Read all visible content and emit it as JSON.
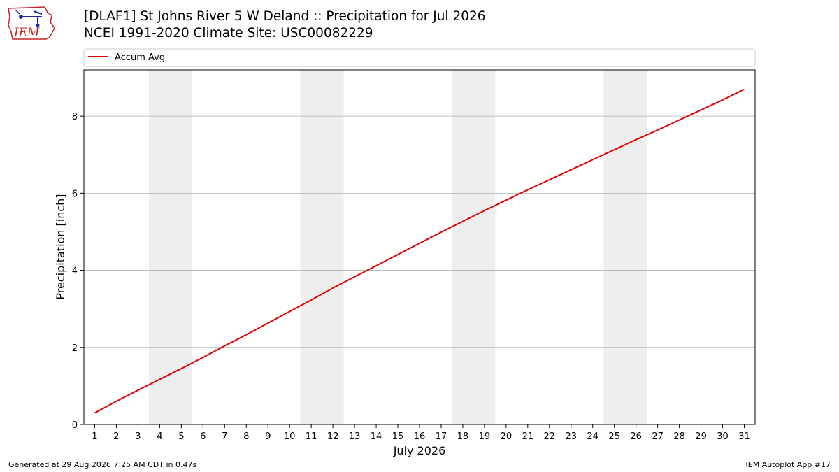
{
  "header": {
    "logo_text": "IEM",
    "title_line1": "[DLAF1] St Johns River 5 W Deland :: Precipitation for Jul 2026",
    "title_line2": "NCEI 1991-2020 Climate Site: USC00082229"
  },
  "footer": {
    "left": "Generated at 29 Aug 2026 7:25 AM CDT in 0.47s",
    "right": "IEM Autoplot App #17"
  },
  "colors": {
    "series": "#e00000",
    "weekend_band": "#eeeeee",
    "grid": "#b0b0b0",
    "logo": "#cc2222"
  },
  "chart_data": {
    "type": "line",
    "title": "[DLAF1] St Johns River 5 W Deland :: Precipitation for Jul 2026",
    "subtitle": "NCEI 1991-2020 Climate Site: USC00082229",
    "xlabel": "July 2026",
    "ylabel": "Precipitation [inch]",
    "xlim": [
      0.5,
      31.5
    ],
    "ylim": [
      0,
      9.2
    ],
    "xticks": [
      1,
      2,
      3,
      4,
      5,
      6,
      7,
      8,
      9,
      10,
      11,
      12,
      13,
      14,
      15,
      16,
      17,
      18,
      19,
      20,
      21,
      22,
      23,
      24,
      25,
      26,
      27,
      28,
      29,
      30,
      31
    ],
    "yticks": [
      0,
      2,
      4,
      6,
      8
    ],
    "grid": "y",
    "legend": "top-left",
    "shaded_bands": [
      [
        3.5,
        5.5
      ],
      [
        10.5,
        12.5
      ],
      [
        17.5,
        19.5
      ],
      [
        24.5,
        26.5
      ]
    ],
    "series": [
      {
        "name": "Accum Avg",
        "x": [
          1,
          2,
          3,
          4,
          5,
          6,
          7,
          8,
          9,
          10,
          11,
          12,
          13,
          14,
          15,
          16,
          17,
          18,
          19,
          20,
          21,
          22,
          23,
          24,
          25,
          26,
          27,
          28,
          29,
          30,
          31
        ],
        "y": [
          0.3,
          0.6,
          0.89,
          1.17,
          1.45,
          1.74,
          2.04,
          2.33,
          2.63,
          2.93,
          3.23,
          3.54,
          3.83,
          4.12,
          4.41,
          4.7,
          4.99,
          5.27,
          5.55,
          5.82,
          6.09,
          6.35,
          6.61,
          6.87,
          7.13,
          7.39,
          7.64,
          7.9,
          8.16,
          8.42,
          8.7
        ]
      }
    ]
  }
}
